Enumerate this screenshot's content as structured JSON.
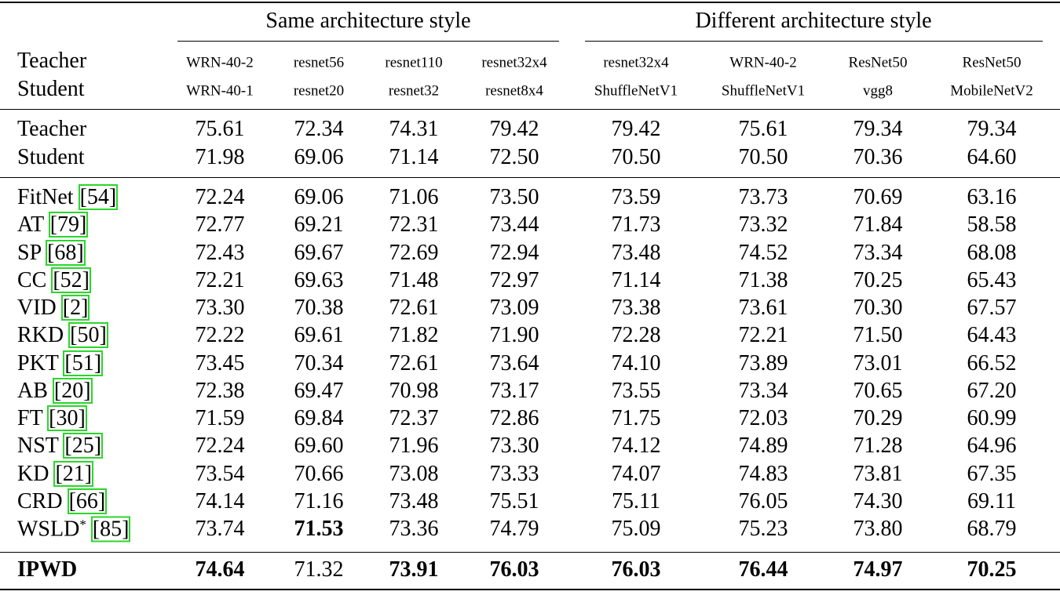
{
  "table": {
    "groups": [
      "Same architecture style",
      "Different architecture style"
    ],
    "header": {
      "teacher": "Teacher",
      "student": "Student"
    },
    "columns": [
      {
        "teacher": "WRN-40-2",
        "student": "WRN-40-1"
      },
      {
        "teacher": "resnet56",
        "student": "resnet20"
      },
      {
        "teacher": "resnet110",
        "student": "resnet32"
      },
      {
        "teacher": "resnet32x4",
        "student": "resnet8x4"
      },
      {
        "teacher": "resnet32x4",
        "student": "ShuffleNetV1"
      },
      {
        "teacher": "WRN-40-2",
        "student": "ShuffleNetV1"
      },
      {
        "teacher": "ResNet50",
        "student": "vgg8"
      },
      {
        "teacher": "ResNet50",
        "student": "MobileNetV2"
      }
    ],
    "baselines": [
      {
        "label": "Teacher",
        "values": [
          "75.61",
          "72.34",
          "74.31",
          "79.42",
          "79.42",
          "75.61",
          "79.34",
          "79.34"
        ]
      },
      {
        "label": "Student",
        "values": [
          "71.98",
          "69.06",
          "71.14",
          "72.50",
          "70.50",
          "70.50",
          "70.36",
          "64.60"
        ]
      }
    ],
    "methods": [
      {
        "name": "FitNet",
        "ref": "[54]",
        "values": [
          "72.24",
          "69.06",
          "71.06",
          "73.50",
          "73.59",
          "73.73",
          "70.69",
          "63.16"
        ]
      },
      {
        "name": "AT",
        "ref": "[79]",
        "values": [
          "72.77",
          "69.21",
          "72.31",
          "73.44",
          "71.73",
          "73.32",
          "71.84",
          "58.58"
        ]
      },
      {
        "name": "SP",
        "ref": "[68]",
        "values": [
          "72.43",
          "69.67",
          "72.69",
          "72.94",
          "73.48",
          "74.52",
          "73.34",
          "68.08"
        ]
      },
      {
        "name": "CC",
        "ref": "[52]",
        "values": [
          "72.21",
          "69.63",
          "71.48",
          "72.97",
          "71.14",
          "71.38",
          "70.25",
          "65.43"
        ]
      },
      {
        "name": "VID",
        "ref": "[2]",
        "values": [
          "73.30",
          "70.38",
          "72.61",
          "73.09",
          "73.38",
          "73.61",
          "70.30",
          "67.57"
        ]
      },
      {
        "name": "RKD",
        "ref": "[50]",
        "values": [
          "72.22",
          "69.61",
          "71.82",
          "71.90",
          "72.28",
          "72.21",
          "71.50",
          "64.43"
        ]
      },
      {
        "name": "PKT",
        "ref": "[51]",
        "values": [
          "73.45",
          "70.34",
          "72.61",
          "73.64",
          "74.10",
          "73.89",
          "73.01",
          "66.52"
        ]
      },
      {
        "name": "AB",
        "ref": "[20]",
        "values": [
          "72.38",
          "69.47",
          "70.98",
          "73.17",
          "73.55",
          "73.34",
          "70.65",
          "67.20"
        ]
      },
      {
        "name": "FT",
        "ref": "[30]",
        "values": [
          "71.59",
          "69.84",
          "72.37",
          "72.86",
          "71.75",
          "72.03",
          "70.29",
          "60.99"
        ]
      },
      {
        "name": "NST",
        "ref": "[25]",
        "values": [
          "72.24",
          "69.60",
          "71.96",
          "73.30",
          "74.12",
          "74.89",
          "71.28",
          "64.96"
        ]
      },
      {
        "name": "KD",
        "ref": "[21]",
        "values": [
          "73.54",
          "70.66",
          "73.08",
          "73.33",
          "74.07",
          "74.83",
          "73.81",
          "67.35"
        ]
      },
      {
        "name": "CRD",
        "ref": "[66]",
        "values": [
          "74.14",
          "71.16",
          "73.48",
          "75.51",
          "75.11",
          "76.05",
          "74.30",
          "69.11"
        ]
      },
      {
        "name": "WSLD",
        "superscript": "*",
        "ref": "[85]",
        "values": [
          "73.74",
          {
            "text": "71.53",
            "bold": true
          },
          "73.36",
          "74.79",
          "75.09",
          "75.23",
          "73.80",
          "68.79"
        ]
      }
    ],
    "ours": {
      "name": "IPWD",
      "bold": true,
      "values": [
        {
          "text": "74.64",
          "bold": true
        },
        "71.32",
        {
          "text": "73.91",
          "bold": true
        },
        {
          "text": "76.03",
          "bold": true
        },
        {
          "text": "76.03",
          "bold": true
        },
        {
          "text": "76.44",
          "bold": true
        },
        {
          "text": "74.97",
          "bold": true
        },
        {
          "text": "70.25",
          "bold": true
        }
      ]
    }
  }
}
